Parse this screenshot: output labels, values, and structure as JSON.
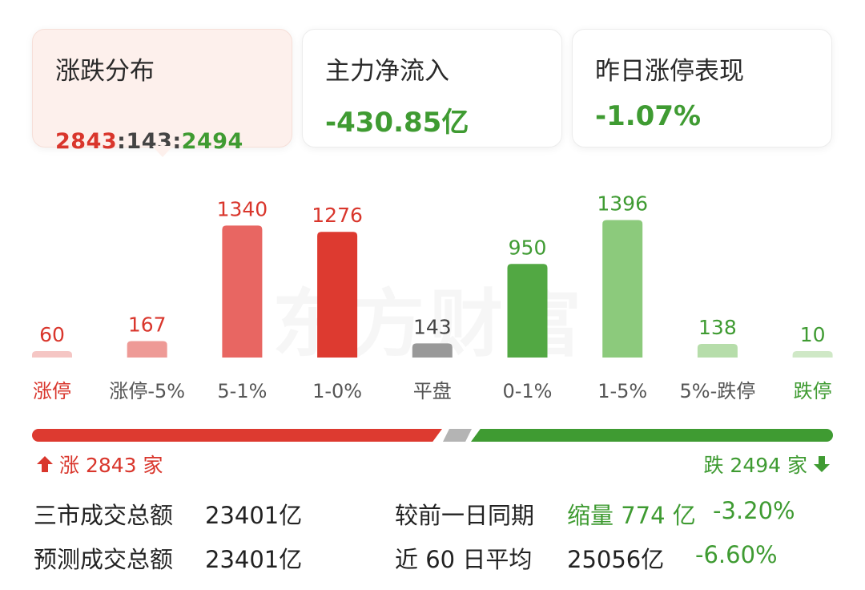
{
  "cards": [
    {
      "title": "涨跌分布",
      "up": "2843",
      "flat": "143",
      "down": "2494",
      "sep": ":"
    },
    {
      "title": "主力净流入",
      "value": "-430.85亿"
    },
    {
      "title": "昨日涨停表现",
      "value": "-1.07%"
    }
  ],
  "watermark": "东方财富",
  "colors": {
    "up": "#d9362c",
    "down": "#3f9b32",
    "flat": "#999999"
  },
  "chart_data": {
    "type": "bar",
    "categories": [
      "涨停",
      "涨停-5%",
      "5-1%",
      "1-0%",
      "平盘",
      "0-1%",
      "1-5%",
      "5%-跌停",
      "跌停"
    ],
    "values": [
      60,
      167,
      1340,
      1276,
      143,
      950,
      1396,
      138,
      10
    ],
    "bar_colors": [
      "#f5c6c4",
      "#ee9a96",
      "#e86662",
      "#dd3a30",
      "#999999",
      "#52a843",
      "#8cca7c",
      "#b6ddaa",
      "#cfe8c6"
    ],
    "label_colors": [
      "#d9362c",
      "#d9362c",
      "#d9362c",
      "#d9362c",
      "#444444",
      "#3f9b32",
      "#3f9b32",
      "#3f9b32",
      "#3f9b32"
    ],
    "category_colors": [
      "#d9362c",
      "#555555",
      "#555555",
      "#555555",
      "#555555",
      "#555555",
      "#555555",
      "#555555",
      "#3f9b32"
    ],
    "ylim": [
      0,
      1400
    ]
  },
  "summary": {
    "up_text": "涨 2843 家",
    "down_text": "跌 2494 家"
  },
  "stats": {
    "row1_label": "三市成交总额",
    "row1_value": "23401亿",
    "row1_compare_label": "较前一日同期",
    "row1_compare_value": "缩量 774 亿",
    "row1_compare_pct": "-3.20%",
    "row2_label": "预测成交总额",
    "row2_value": "23401亿",
    "row2_compare_label": "近 60 日平均",
    "row2_compare_value": "25056亿",
    "row2_compare_pct": "-6.60%"
  }
}
